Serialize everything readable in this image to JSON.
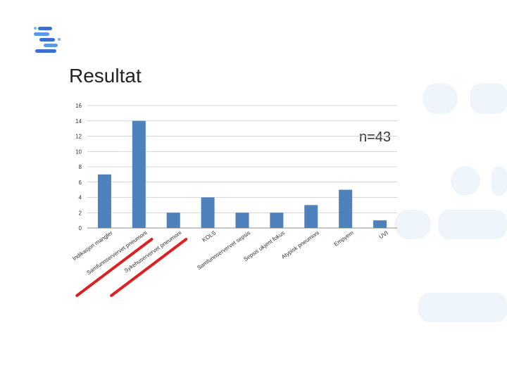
{
  "slide": {
    "title": "Resultat"
  },
  "logo": {
    "icon": "bars-s-logo-icon",
    "color": "#3b6fd1"
  },
  "chart_data": {
    "type": "bar",
    "title": "",
    "xlabel": "",
    "ylabel": "",
    "annotation": "n=43",
    "ylim": [
      0,
      16
    ],
    "yticks": [
      0,
      2,
      4,
      6,
      8,
      10,
      12,
      14,
      16
    ],
    "grid": true,
    "legend": "none",
    "bar_color": "#4f81bd",
    "categories": [
      "Indikasjon mangler",
      "Samfunnservervet pneumoni",
      "Sykehuservervet pneumoni",
      "KOLS",
      "Samfunnservervet sepsis",
      "Sepsis ukjent fokus",
      "Atypisk pneumoni",
      "Empyem",
      "UVI"
    ],
    "values": [
      7,
      14,
      2,
      4,
      2,
      2,
      3,
      5,
      1
    ],
    "strikethrough_categories": [
      "Samfunnservervet pneumoni",
      "Sykehuservervet pneumoni"
    ],
    "strikethrough_color": "#e02020"
  }
}
